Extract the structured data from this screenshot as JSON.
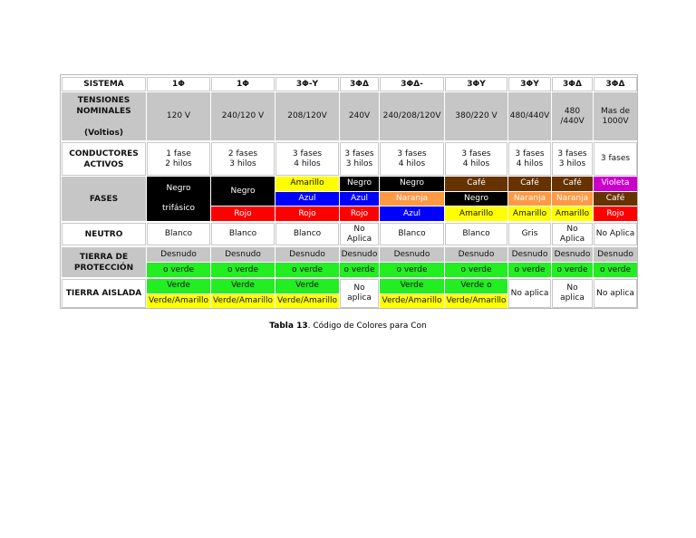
{
  "palette": {
    "gray": "#c6c6c6",
    "white": "#ffffff",
    "black": "#000000",
    "blue": "#0000ff",
    "red": "#ff0000",
    "yellow": "#ffff00",
    "green": "#22ee22",
    "orange": "#ff9944",
    "brown": "#663300",
    "violet": "#cc00cc"
  },
  "table": {
    "header": [
      "SISTEMA",
      "1Φ",
      "1Φ",
      "3Φ-Y",
      "3ΦΔ",
      "3ΦΔ-",
      "3ΦY",
      "3ΦY",
      "3ΦΔ",
      "3ΦΔ"
    ],
    "rows": [
      {
        "label": "TENSIONES\nNOMINALES\n\n(Voltios)",
        "label_bg": "gray",
        "subrows": 1,
        "cells": [
          [
            {
              "text": "120 V",
              "bg": "gray"
            }
          ],
          [
            {
              "text": "240/120 V",
              "bg": "gray"
            }
          ],
          [
            {
              "text": "208/120V",
              "bg": "gray"
            }
          ],
          [
            {
              "text": "240V",
              "bg": "gray"
            }
          ],
          [
            {
              "text": "240/208/120V",
              "bg": "gray"
            }
          ],
          [
            {
              "text": "380/220 V",
              "bg": "gray"
            }
          ],
          [
            {
              "text": "480/440V",
              "bg": "gray"
            }
          ],
          [
            {
              "text": "480\n/440V",
              "bg": "gray"
            }
          ],
          [
            {
              "text": "Mas de\n1000V",
              "bg": "gray"
            }
          ]
        ]
      },
      {
        "label": "CONDUCTORES\nACTIVOS",
        "label_bg": "white",
        "subrows": 1,
        "cells": [
          [
            {
              "text": "1 fase\n2 hilos",
              "bg": "white"
            }
          ],
          [
            {
              "text": "2 fases\n3 hilos",
              "bg": "white"
            }
          ],
          [
            {
              "text": "3 fases\n4 hilos",
              "bg": "white"
            }
          ],
          [
            {
              "text": "3 fases\n3 hilos",
              "bg": "white"
            }
          ],
          [
            {
              "text": "3 fases\n4 hilos",
              "bg": "white"
            }
          ],
          [
            {
              "text": "3 fases\n4 hilos",
              "bg": "white"
            }
          ],
          [
            {
              "text": "3 fases\n4 hilos",
              "bg": "white"
            }
          ],
          [
            {
              "text": "3 fases\n3 hilos",
              "bg": "white"
            }
          ],
          [
            {
              "text": "3 fases",
              "bg": "white"
            }
          ]
        ]
      },
      {
        "label": "FASES",
        "label_bg": "gray",
        "subrows": 3,
        "cells": [
          [
            {
              "text": "Negro\n\ntrifásico",
              "bg": "black",
              "span": 3
            }
          ],
          [
            {
              "text": "Negro",
              "bg": "black",
              "span": 2
            },
            {
              "text": "Rojo",
              "bg": "red"
            }
          ],
          [
            {
              "text": "Amarillo",
              "bg": "yellow"
            },
            {
              "text": "Azul",
              "bg": "blue"
            },
            {
              "text": "Rojo",
              "bg": "red"
            }
          ],
          [
            {
              "text": "Negro",
              "bg": "black"
            },
            {
              "text": "Azul",
              "bg": "blue"
            },
            {
              "text": "Rojo",
              "bg": "red"
            }
          ],
          [
            {
              "text": "Negro",
              "bg": "black"
            },
            {
              "text": "Naranja",
              "bg": "orange"
            },
            {
              "text": "Azul",
              "bg": "blue"
            }
          ],
          [
            {
              "text": "Café",
              "bg": "brown"
            },
            {
              "text": "Negro",
              "bg": "black"
            },
            {
              "text": "Amarillo",
              "bg": "yellow"
            }
          ],
          [
            {
              "text": "Café",
              "bg": "brown"
            },
            {
              "text": "Naranja",
              "bg": "orange"
            },
            {
              "text": "Amarillo",
              "bg": "yellow"
            }
          ],
          [
            {
              "text": "Café",
              "bg": "brown"
            },
            {
              "text": "Naranja",
              "bg": "orange"
            },
            {
              "text": "Amarillo",
              "bg": "yellow"
            }
          ],
          [
            {
              "text": "Violeta",
              "bg": "violet"
            },
            {
              "text": "Café",
              "bg": "brown"
            },
            {
              "text": "Rojo",
              "bg": "red"
            }
          ]
        ]
      },
      {
        "label": "NEUTRO",
        "label_bg": "white",
        "subrows": 1,
        "cells": [
          [
            {
              "text": "Blanco",
              "bg": "white"
            }
          ],
          [
            {
              "text": "Blanco",
              "bg": "white"
            }
          ],
          [
            {
              "text": "Blanco",
              "bg": "white"
            }
          ],
          [
            {
              "text": "No\nAplica",
              "bg": "white"
            }
          ],
          [
            {
              "text": "Blanco",
              "bg": "white"
            }
          ],
          [
            {
              "text": "Blanco",
              "bg": "white"
            }
          ],
          [
            {
              "text": "Gris",
              "bg": "white"
            }
          ],
          [
            {
              "text": "No\nAplica",
              "bg": "white"
            }
          ],
          [
            {
              "text": "No Aplica",
              "bg": "white"
            }
          ]
        ]
      },
      {
        "label": "TIERRA DE\nPROTECCIÓN",
        "label_bg": "gray",
        "subrows": 2,
        "cells": [
          [
            {
              "text": "Desnudo",
              "bg": "gray"
            },
            {
              "text": "o verde",
              "bg": "green"
            }
          ],
          [
            {
              "text": "Desnudo",
              "bg": "gray"
            },
            {
              "text": "o verde",
              "bg": "green"
            }
          ],
          [
            {
              "text": "Desnudo",
              "bg": "gray"
            },
            {
              "text": "o verde",
              "bg": "green"
            }
          ],
          [
            {
              "text": "Desnudo",
              "bg": "gray"
            },
            {
              "text": "o verde",
              "bg": "green"
            }
          ],
          [
            {
              "text": "Desnudo",
              "bg": "gray"
            },
            {
              "text": "o verde",
              "bg": "green"
            }
          ],
          [
            {
              "text": "Desnudo",
              "bg": "gray"
            },
            {
              "text": "o verde",
              "bg": "green"
            }
          ],
          [
            {
              "text": "Desnudo",
              "bg": "gray"
            },
            {
              "text": "o verde",
              "bg": "green"
            }
          ],
          [
            {
              "text": "Desnudo",
              "bg": "gray"
            },
            {
              "text": "o verde",
              "bg": "green"
            }
          ],
          [
            {
              "text": "Desnudo",
              "bg": "gray"
            },
            {
              "text": "o verde",
              "bg": "green"
            }
          ]
        ]
      },
      {
        "label": "TIERRA AISLADA",
        "label_bg": "white",
        "subrows": 2,
        "cells": [
          [
            {
              "text": "Verde",
              "bg": "green"
            },
            {
              "text": "Verde/Amarillo",
              "bg": "yellow"
            }
          ],
          [
            {
              "text": "Verde",
              "bg": "green"
            },
            {
              "text": "Verde/Amarillo",
              "bg": "yellow"
            }
          ],
          [
            {
              "text": "Verde",
              "bg": "green"
            },
            {
              "text": "Verde/Amarillo",
              "bg": "yellow"
            }
          ],
          [
            {
              "text": "No\naplica",
              "bg": "white",
              "span": 2
            }
          ],
          [
            {
              "text": "Verde",
              "bg": "green"
            },
            {
              "text": "Verde/Amarillo",
              "bg": "yellow"
            }
          ],
          [
            {
              "text": "Verde o",
              "bg": "green"
            },
            {
              "text": "Verde/Amarillo",
              "bg": "yellow"
            }
          ],
          [
            {
              "text": "No aplica",
              "bg": "white",
              "span": 2
            }
          ],
          [
            {
              "text": "No\naplica",
              "bg": "white",
              "span": 2
            }
          ],
          [
            {
              "text": "No aplica",
              "bg": "white",
              "span": 2
            }
          ]
        ]
      }
    ]
  },
  "caption": {
    "label": "Tabla 13",
    "text": ". Código de Colores para Con"
  }
}
